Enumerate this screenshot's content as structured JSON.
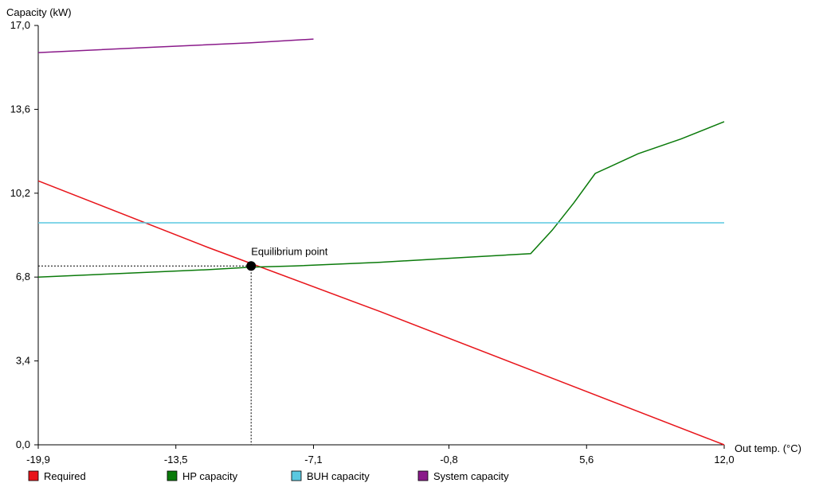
{
  "chart_data": {
    "type": "line",
    "ylabel": "Capacity  (kW)",
    "xlabel": "Out temp. (°C)",
    "xlim": [
      -19.9,
      12.0
    ],
    "ylim": [
      0.0,
      17.0
    ],
    "xticks": [
      "-19,9",
      "-13,5",
      "-7,1",
      "-0,8",
      "5,6",
      "12,0"
    ],
    "yticks": [
      "0,0",
      "3,4",
      "6,8",
      "10,2",
      "13,6",
      "17,0"
    ],
    "xtick_values": [
      -19.9,
      -13.5,
      -7.1,
      -0.8,
      5.6,
      12.0
    ],
    "ytick_values": [
      0.0,
      3.4,
      6.8,
      10.2,
      13.6,
      17.0
    ],
    "grid": false,
    "legend_position": "bottom",
    "series": [
      {
        "name": "Required",
        "color": "#e8141a",
        "x": [
          -19.9,
          -12.0,
          -4.0,
          4.0,
          12.0
        ],
        "y": [
          10.7,
          8.0,
          5.4,
          2.7,
          0.0
        ]
      },
      {
        "name": "HP capacity",
        "color": "#0a7a0a",
        "x": [
          -19.9,
          -16.0,
          -12.0,
          -10.0,
          -8.0,
          -4.0,
          0.0,
          2.0,
          3.0,
          4.0,
          5.0,
          6.0,
          8.0,
          10.0,
          12.0
        ],
        "y": [
          6.8,
          6.95,
          7.1,
          7.2,
          7.25,
          7.4,
          7.6,
          7.7,
          7.75,
          8.7,
          9.8,
          11.0,
          11.8,
          12.4,
          13.1
        ]
      },
      {
        "name": "BUH capacity",
        "color": "#5ac8e0",
        "x": [
          -19.9,
          12.0
        ],
        "y": [
          9.0,
          9.0
        ]
      },
      {
        "name": "System capacity",
        "color": "#8a1a8a",
        "x": [
          -19.9,
          -15.0,
          -10.0,
          -7.1
        ],
        "y": [
          15.9,
          16.1,
          16.3,
          16.45
        ]
      }
    ],
    "annotations": [
      {
        "text": "Equilibrium point",
        "x": -10.0,
        "y": 7.25
      }
    ]
  }
}
